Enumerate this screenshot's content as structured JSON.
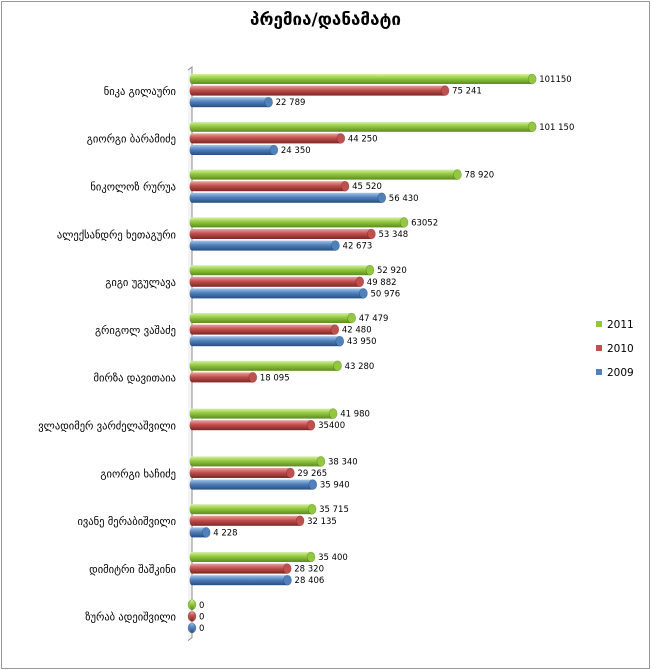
{
  "chart_data": {
    "type": "bar",
    "orientation": "horizontal",
    "title": "პრემია/დანამატი",
    "xlabel": "",
    "ylabel": "",
    "xlim": [
      0,
      110000
    ],
    "grid": false,
    "legend_position": "right",
    "categories": [
      "ნიკა გილაური",
      "გიორგი ბარამიძე",
      "ნიკოლოზ რურუა",
      "ალექსანდრე ხეთაგური",
      "გიგი უგულავა",
      "გრიგოლ ვაშაძე",
      "მირზა დავითაია",
      "ვლადიმერ ვარძელაშვილი",
      "გიორგი ხაჩიძე",
      "ივანე მერაბიშვილი",
      "დიმიტრი შაშკინი",
      "ზურაბ ადეიშვილი"
    ],
    "series": [
      {
        "name": "2011",
        "color": "#92c83e",
        "values": [
          101150,
          101150,
          78920,
          63052,
          52920,
          47479,
          43280,
          41980,
          38340,
          35715,
          35400,
          0
        ],
        "labels": [
          "101150",
          "101 150",
          "78 920",
          "63052",
          "52 920",
          "47 479",
          "43 280",
          "41 980",
          "38 340",
          "35 715",
          "35 400",
          "0"
        ]
      },
      {
        "name": "2010",
        "color": "#c0504d",
        "values": [
          75241,
          44250,
          45520,
          53348,
          49882,
          42480,
          18095,
          35400,
          29265,
          32135,
          28320,
          0
        ],
        "labels": [
          "75 241",
          "44 250",
          "45 520",
          "53 348",
          "49 882",
          "42 480",
          "18 095",
          "35400",
          "29 265",
          "32 135",
          "28 320",
          "0"
        ]
      },
      {
        "name": "2009",
        "color": "#4f81bd",
        "values": [
          22789,
          24350,
          56430,
          42673,
          50976,
          43950,
          null,
          null,
          35940,
          4228,
          28406,
          0
        ],
        "labels": [
          "22 789",
          "24 350",
          "56 430",
          "42 673",
          "50 976",
          "43 950",
          null,
          null,
          "35 940",
          "4 228",
          "28 406",
          "0"
        ]
      }
    ],
    "legend": [
      "2011",
      "2010",
      "2009"
    ]
  }
}
